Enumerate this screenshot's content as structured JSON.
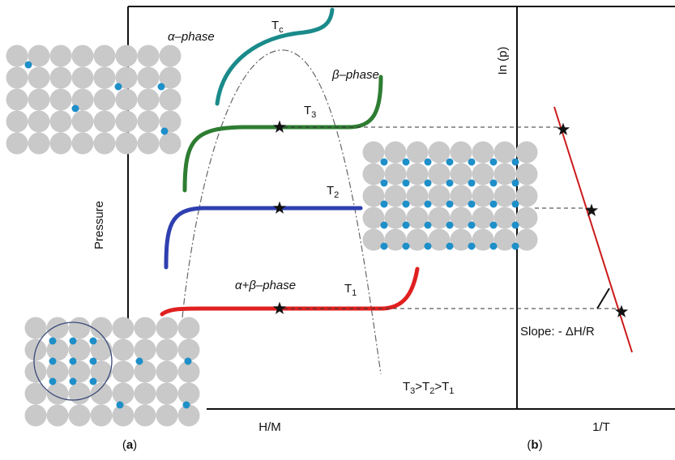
{
  "panel_a": {
    "caption": [
      "(",
      "a",
      ")"
    ],
    "y_axis_label": "Pressure",
    "x_axis_label": "H/M",
    "alpha_phase": "α–phase",
    "beta_phase": "β–phase",
    "alpha_beta_phase": "α+β–phase",
    "tc": [
      "T",
      "c"
    ],
    "t3": [
      "T",
      "3"
    ],
    "t2": [
      "T",
      "2"
    ],
    "t1": [
      "T",
      "1"
    ],
    "order": [
      "T",
      "3",
      ">T",
      "2",
      ">T",
      "1"
    ]
  },
  "panel_b": {
    "caption": [
      "(",
      "b",
      ")"
    ],
    "y_axis_label": "In (p)",
    "x_axis_label": "1/T",
    "slope_label": "Slope: - ΔH/R"
  }
}
